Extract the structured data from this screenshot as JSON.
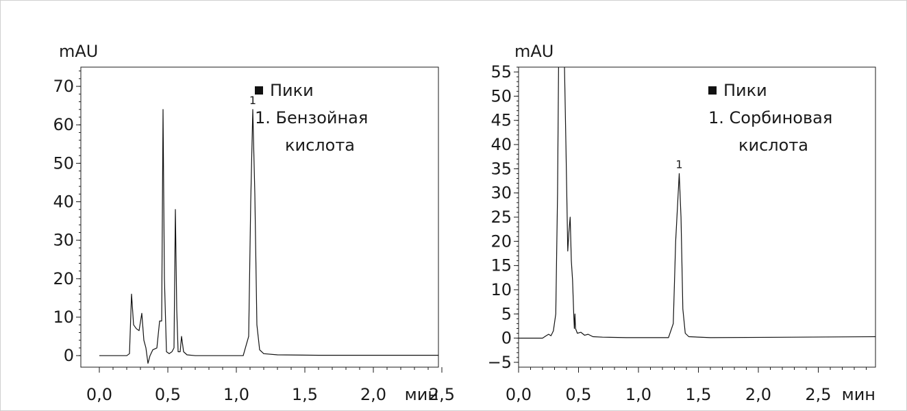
{
  "chart_data": [
    {
      "type": "line",
      "ylabel": "mAU",
      "xlabel": "мин",
      "xlim": [
        0.0,
        3.0
      ],
      "ylim": [
        -3,
        75
      ],
      "x_ticks": [
        0.0,
        0.5,
        1.0,
        1.5,
        2.0,
        2.5
      ],
      "x_tick_labels": [
        "0,0",
        "0,5",
        "1,0",
        "1,5",
        "2,0",
        "2,5"
      ],
      "y_ticks": [
        0,
        10,
        20,
        30,
        40,
        50,
        60,
        70
      ],
      "y_tick_labels": [
        "0",
        "10",
        "20",
        "30",
        "40",
        "50",
        "60",
        "70"
      ],
      "legend": {
        "title": "Пики",
        "items": [
          {
            "line1": "1. Бензойная",
            "line2": "кислота"
          }
        ]
      },
      "peak_labels": [
        {
          "label": "1",
          "x": 1.12,
          "y": 64
        }
      ],
      "series": [
        {
          "points": [
            [
              0.0,
              0
            ],
            [
              0.2,
              0
            ],
            [
              0.22,
              0.5
            ],
            [
              0.235,
              16
            ],
            [
              0.25,
              8
            ],
            [
              0.27,
              7
            ],
            [
              0.29,
              6.5
            ],
            [
              0.31,
              11
            ],
            [
              0.325,
              4
            ],
            [
              0.34,
              2
            ],
            [
              0.355,
              -2
            ],
            [
              0.37,
              0
            ],
            [
              0.39,
              1.5
            ],
            [
              0.42,
              2
            ],
            [
              0.44,
              9
            ],
            [
              0.455,
              9
            ],
            [
              0.465,
              64
            ],
            [
              0.475,
              20
            ],
            [
              0.49,
              1
            ],
            [
              0.51,
              0.5
            ],
            [
              0.53,
              1
            ],
            [
              0.545,
              2
            ],
            [
              0.555,
              38
            ],
            [
              0.565,
              12
            ],
            [
              0.575,
              1
            ],
            [
              0.59,
              1
            ],
            [
              0.6,
              5
            ],
            [
              0.615,
              1
            ],
            [
              0.64,
              0.2
            ],
            [
              0.7,
              0
            ],
            [
              1.05,
              0
            ],
            [
              1.09,
              5
            ],
            [
              1.105,
              40
            ],
            [
              1.12,
              64
            ],
            [
              1.135,
              42
            ],
            [
              1.15,
              8
            ],
            [
              1.17,
              1.5
            ],
            [
              1.2,
              0.5
            ],
            [
              1.3,
              0.2
            ],
            [
              1.6,
              0.1
            ],
            [
              3.0,
              0.1
            ]
          ]
        }
      ]
    },
    {
      "type": "line",
      "ylabel": "mAU",
      "xlabel": "мин",
      "xlim": [
        0.0,
        3.0
      ],
      "ylim": [
        -6,
        56
      ],
      "x_ticks": [
        0.0,
        0.5,
        1.0,
        1.5,
        2.0,
        2.5
      ],
      "x_tick_labels": [
        "0,0",
        "0,5",
        "1,0",
        "1,5",
        "2,0",
        "2,5"
      ],
      "y_ticks": [
        -5,
        0,
        5,
        10,
        15,
        20,
        25,
        30,
        35,
        40,
        45,
        50,
        55
      ],
      "y_tick_labels": [
        "−5",
        "0",
        "5",
        "10",
        "15",
        "20",
        "25",
        "30",
        "35",
        "40",
        "45",
        "50",
        "55"
      ],
      "legend": {
        "title": "Пики",
        "items": [
          {
            "line1": "1. Сорбиновая",
            "line2": "кислота"
          }
        ]
      },
      "peak_labels": [
        {
          "label": "1",
          "x": 1.34,
          "y": 34
        }
      ],
      "series": [
        {
          "points": [
            [
              0.0,
              0
            ],
            [
              0.2,
              0
            ],
            [
              0.23,
              0.5
            ],
            [
              0.25,
              0.8
            ],
            [
              0.27,
              0.5
            ],
            [
              0.29,
              1.5
            ],
            [
              0.31,
              5
            ],
            [
              0.325,
              30
            ],
            [
              0.335,
              60
            ],
            [
              0.38,
              60
            ],
            [
              0.395,
              40
            ],
            [
              0.41,
              18
            ],
            [
              0.42,
              22
            ],
            [
              0.43,
              25
            ],
            [
              0.44,
              16
            ],
            [
              0.45,
              12
            ],
            [
              0.46,
              5
            ],
            [
              0.465,
              2
            ],
            [
              0.47,
              5
            ],
            [
              0.475,
              2
            ],
            [
              0.49,
              1
            ],
            [
              0.52,
              1.2
            ],
            [
              0.55,
              0.6
            ],
            [
              0.58,
              0.8
            ],
            [
              0.62,
              0.3
            ],
            [
              0.7,
              0.2
            ],
            [
              0.9,
              0.1
            ],
            [
              1.25,
              0.1
            ],
            [
              1.29,
              3
            ],
            [
              1.31,
              20
            ],
            [
              1.34,
              34
            ],
            [
              1.355,
              25
            ],
            [
              1.37,
              6
            ],
            [
              1.39,
              1
            ],
            [
              1.42,
              0.3
            ],
            [
              1.6,
              0.1
            ],
            [
              3.0,
              0.3
            ]
          ]
        }
      ]
    }
  ]
}
